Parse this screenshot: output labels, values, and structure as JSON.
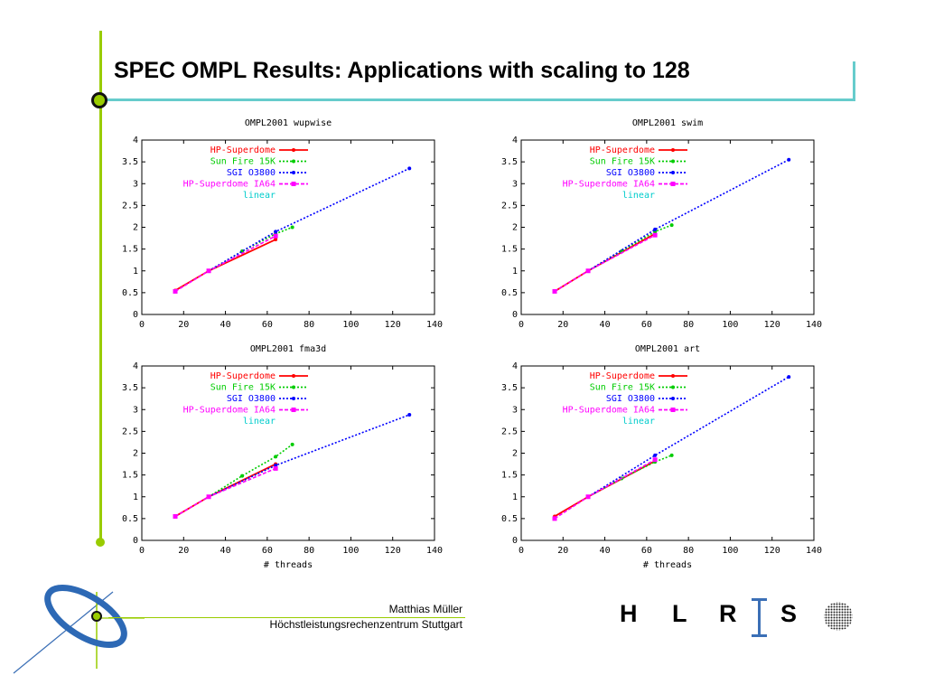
{
  "slide": {
    "title": "SPEC OMPL Results: Applications with scaling to 128",
    "footer_author": "Matthias Müller",
    "footer_org": "Höchstleistungsrechenzentrum Stuttgart",
    "logo_letters": [
      "H",
      "L",
      "R",
      "S"
    ]
  },
  "colors": {
    "accent_green": "#99cc00",
    "accent_teal": "#66cccc",
    "logo_blue": "#3b6fb6",
    "series": [
      "#ff0000",
      "#00cc00",
      "#0000ff",
      "#ff00ff",
      "#00cccc"
    ]
  },
  "chart_data": [
    {
      "type": "line",
      "title": "OMPL2001 wupwise",
      "xlabel": "",
      "xlim": [
        0,
        140
      ],
      "ylim": [
        0,
        4
      ],
      "xticks": [
        0,
        20,
        40,
        60,
        80,
        100,
        120,
        140
      ],
      "yticks": [
        0,
        0.5,
        1,
        1.5,
        2,
        2.5,
        3,
        3.5,
        4
      ],
      "legend_position": "top-left",
      "series": [
        {
          "name": "HP-Superdome",
          "x": [
            16,
            32,
            64
          ],
          "y": [
            0.55,
            1.0,
            1.72
          ]
        },
        {
          "name": "Sun Fire 15K",
          "x": [
            32,
            48,
            64,
            72
          ],
          "y": [
            1.0,
            1.45,
            1.85,
            2.0
          ]
        },
        {
          "name": "SGI O3800",
          "x": [
            32,
            64,
            128
          ],
          "y": [
            1.0,
            1.9,
            3.35
          ]
        },
        {
          "name": "HP-Superdome IA64",
          "x": [
            16,
            32,
            64
          ],
          "y": [
            0.53,
            1.0,
            1.8
          ]
        },
        {
          "name": "linear",
          "x": [],
          "y": []
        }
      ]
    },
    {
      "type": "line",
      "title": "OMPL2001 swim",
      "xlabel": "",
      "xlim": [
        0,
        140
      ],
      "ylim": [
        0,
        4
      ],
      "xticks": [
        0,
        20,
        40,
        60,
        80,
        100,
        120,
        140
      ],
      "yticks": [
        0,
        0.5,
        1,
        1.5,
        2,
        2.5,
        3,
        3.5,
        4
      ],
      "legend_position": "top-left",
      "series": [
        {
          "name": "HP-Superdome",
          "x": [
            16,
            32,
            64
          ],
          "y": [
            0.53,
            1.0,
            1.85
          ]
        },
        {
          "name": "Sun Fire 15K",
          "x": [
            32,
            48,
            64,
            72
          ],
          "y": [
            1.0,
            1.45,
            1.9,
            2.05
          ]
        },
        {
          "name": "SGI O3800",
          "x": [
            32,
            64,
            128
          ],
          "y": [
            1.0,
            1.95,
            3.55
          ]
        },
        {
          "name": "HP-Superdome IA64",
          "x": [
            16,
            32,
            64
          ],
          "y": [
            0.53,
            1.0,
            1.82
          ]
        },
        {
          "name": "linear",
          "x": [],
          "y": []
        }
      ]
    },
    {
      "type": "line",
      "title": "OMPL2001 fma3d",
      "xlabel": "# threads",
      "xlim": [
        0,
        140
      ],
      "ylim": [
        0,
        4
      ],
      "xticks": [
        0,
        20,
        40,
        60,
        80,
        100,
        120,
        140
      ],
      "yticks": [
        0,
        0.5,
        1,
        1.5,
        2,
        2.5,
        3,
        3.5,
        4
      ],
      "legend_position": "top-left",
      "series": [
        {
          "name": "HP-Superdome",
          "x": [
            16,
            32,
            64
          ],
          "y": [
            0.55,
            1.0,
            1.75
          ]
        },
        {
          "name": "Sun Fire 15K",
          "x": [
            32,
            48,
            64,
            72
          ],
          "y": [
            1.0,
            1.48,
            1.92,
            2.2
          ]
        },
        {
          "name": "SGI O3800",
          "x": [
            32,
            64,
            128
          ],
          "y": [
            1.0,
            1.72,
            2.88
          ]
        },
        {
          "name": "HP-Superdome IA64",
          "x": [
            16,
            32,
            64
          ],
          "y": [
            0.55,
            1.0,
            1.65
          ]
        },
        {
          "name": "linear",
          "x": [],
          "y": []
        }
      ]
    },
    {
      "type": "line",
      "title": "OMPL2001 art",
      "xlabel": "# threads",
      "xlim": [
        0,
        140
      ],
      "ylim": [
        0,
        4
      ],
      "xticks": [
        0,
        20,
        40,
        60,
        80,
        100,
        120,
        140
      ],
      "yticks": [
        0,
        0.5,
        1,
        1.5,
        2,
        2.5,
        3,
        3.5,
        4
      ],
      "legend_position": "top-left",
      "series": [
        {
          "name": "HP-Superdome",
          "x": [
            16,
            32,
            64
          ],
          "y": [
            0.55,
            1.0,
            1.82
          ]
        },
        {
          "name": "Sun Fire 15K",
          "x": [
            32,
            48,
            64,
            72
          ],
          "y": [
            1.0,
            1.42,
            1.8,
            1.95
          ]
        },
        {
          "name": "SGI O3800",
          "x": [
            32,
            64,
            128
          ],
          "y": [
            1.0,
            1.95,
            3.75
          ]
        },
        {
          "name": "HP-Superdome IA64",
          "x": [
            16,
            32,
            64
          ],
          "y": [
            0.5,
            1.0,
            1.85
          ]
        },
        {
          "name": "linear",
          "x": [],
          "y": []
        }
      ]
    }
  ]
}
